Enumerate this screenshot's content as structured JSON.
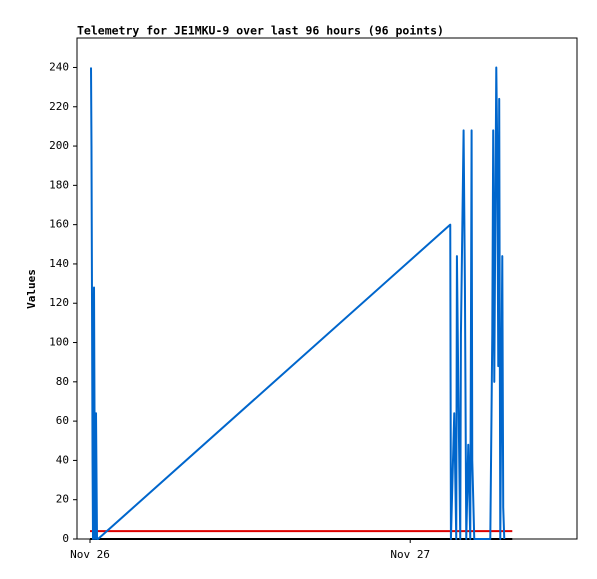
{
  "chart_data": {
    "type": "line",
    "title": "Telemetry for JE1MKU-9 over last 96 hours (96 points)",
    "y_label": "Values",
    "xlim": [
      -0.975,
      36.5
    ],
    "xticks": [
      {
        "value": 0,
        "label": "Nov 26"
      },
      {
        "value": 24,
        "label": "Nov 27"
      }
    ],
    "ylim": [
      0,
      255
    ],
    "yticks": [
      0,
      20,
      40,
      60,
      80,
      100,
      120,
      140,
      160,
      180,
      200,
      220,
      240
    ],
    "grid": false,
    "series": [
      {
        "color": "#0066cc",
        "x": [
          0.075,
          0.11,
          0.15,
          0.19,
          0.225,
          0.3,
          0.375,
          0.45,
          0.525,
          0.6,
          27.0,
          27.05,
          27.3,
          27.45,
          27.5,
          27.6,
          27.75,
          27.8,
          28.0,
          28.1,
          28.2,
          28.35,
          28.5,
          28.6,
          28.65,
          28.8,
          28.95,
          29.1,
          29.25,
          29.4,
          29.55,
          29.6,
          30.0,
          30.15,
          30.22,
          30.3,
          30.45,
          30.52,
          30.6,
          30.67,
          30.75,
          30.9,
          30.97,
          31.05
        ],
        "values": [
          240,
          200,
          120,
          40,
          0,
          128,
          0,
          64,
          0,
          0,
          160,
          0,
          64,
          0,
          144,
          80,
          0,
          104,
          208,
          128,
          0,
          48,
          0,
          208,
          40,
          0,
          0,
          0,
          0,
          0,
          0,
          0,
          0,
          104,
          208,
          80,
          240,
          200,
          88,
          224,
          0,
          144,
          16,
          0
        ]
      },
      {
        "color": "#dd0000",
        "x": [
          0.0,
          31.65
        ],
        "values": [
          4,
          4
        ]
      },
      {
        "color": "#000000",
        "x": [
          0.0,
          31.65
        ],
        "values": [
          0,
          0
        ]
      }
    ]
  }
}
